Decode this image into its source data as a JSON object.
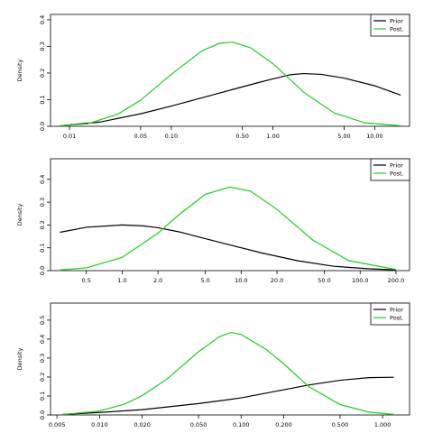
{
  "chart_data": [
    {
      "type": "line",
      "xscale": "log",
      "ylabel": "Density",
      "xlim": [
        0.0065,
        22
      ],
      "ylim": [
        0,
        0.42
      ],
      "xticks": [
        {
          "value": 0.01,
          "label": "0.01"
        },
        {
          "value": 0.05,
          "label": "0.05"
        },
        {
          "value": 0.1,
          "label": "0.10"
        },
        {
          "value": 0.5,
          "label": "0.50"
        },
        {
          "value": 1.0,
          "label": "1.00"
        },
        {
          "value": 5.0,
          "label": "5.00"
        },
        {
          "value": 10.0,
          "label": "10.00"
        }
      ],
      "yticks": [
        {
          "value": 0.0,
          "label": "0.0"
        },
        {
          "value": 0.1,
          "label": "0.1"
        },
        {
          "value": 0.2,
          "label": "0.2"
        },
        {
          "value": 0.3,
          "label": "0.3"
        },
        {
          "value": 0.4,
          "label": "0.4"
        }
      ],
      "legend_position": "top-right",
      "series": [
        {
          "name": "Prior",
          "color": "#000000",
          "x": [
            0.008,
            0.02,
            0.05,
            0.1,
            0.2,
            0.4,
            0.7,
            1.0,
            1.5,
            2.0,
            3.0,
            5.0,
            10.0,
            18.0
          ],
          "y": [
            0.002,
            0.016,
            0.047,
            0.076,
            0.107,
            0.138,
            0.163,
            0.178,
            0.194,
            0.198,
            0.195,
            0.181,
            0.152,
            0.117
          ]
        },
        {
          "name": "Post.",
          "color": "#22cc22",
          "x": [
            0.008,
            0.015,
            0.03,
            0.05,
            0.1,
            0.2,
            0.3,
            0.4,
            0.6,
            1.0,
            2.0,
            4.0,
            8.0,
            18.0
          ],
          "y": [
            0.002,
            0.009,
            0.046,
            0.098,
            0.195,
            0.283,
            0.312,
            0.316,
            0.295,
            0.235,
            0.128,
            0.05,
            0.013,
            0.002
          ]
        }
      ]
    },
    {
      "type": "line",
      "xscale": "log",
      "ylabel": "Density",
      "xlim": [
        0.25,
        260
      ],
      "ylim": [
        0,
        0.49
      ],
      "xticks": [
        {
          "value": 0.5,
          "label": "0.5"
        },
        {
          "value": 1.0,
          "label": "1.0"
        },
        {
          "value": 2.0,
          "label": "2.0"
        },
        {
          "value": 5.0,
          "label": "5.0"
        },
        {
          "value": 10.0,
          "label": "10.0"
        },
        {
          "value": 20.0,
          "label": "20.0"
        },
        {
          "value": 50.0,
          "label": "50.0"
        },
        {
          "value": 100.0,
          "label": "100.0"
        },
        {
          "value": 200.0,
          "label": "200.0"
        }
      ],
      "yticks": [
        {
          "value": 0.0,
          "label": "0.0"
        },
        {
          "value": 0.1,
          "label": "0.1"
        },
        {
          "value": 0.2,
          "label": "0.2"
        },
        {
          "value": 0.3,
          "label": "0.3"
        },
        {
          "value": 0.4,
          "label": "0.4"
        }
      ],
      "legend_position": "top-right",
      "series": [
        {
          "name": "Prior",
          "color": "#000000",
          "x": [
            0.3,
            0.5,
            1.0,
            1.5,
            2.0,
            3.0,
            5.0,
            8.0,
            15.0,
            30.0,
            60.0,
            120.0,
            200.0
          ],
          "y": [
            0.168,
            0.19,
            0.2,
            0.196,
            0.188,
            0.17,
            0.14,
            0.113,
            0.077,
            0.043,
            0.019,
            0.008,
            0.003
          ]
        },
        {
          "name": "Post.",
          "color": "#22cc22",
          "x": [
            0.3,
            0.5,
            1.0,
            2.0,
            3.0,
            5.0,
            8.0,
            12.0,
            20.0,
            40.0,
            80.0,
            200.0
          ],
          "y": [
            0.003,
            0.012,
            0.058,
            0.164,
            0.245,
            0.334,
            0.366,
            0.348,
            0.268,
            0.134,
            0.044,
            0.005
          ]
        }
      ]
    },
    {
      "type": "line",
      "xscale": "log",
      "ylabel": "Density",
      "xlim": [
        0.0045,
        1.55
      ],
      "ylim": [
        0,
        0.59
      ],
      "xticks": [
        {
          "value": 0.005,
          "label": "0.005"
        },
        {
          "value": 0.01,
          "label": "0.010"
        },
        {
          "value": 0.02,
          "label": "0.020"
        },
        {
          "value": 0.05,
          "label": "0.050"
        },
        {
          "value": 0.1,
          "label": "0.100"
        },
        {
          "value": 0.2,
          "label": "0.200"
        },
        {
          "value": 0.5,
          "label": "0.500"
        },
        {
          "value": 1.0,
          "label": "1.000"
        }
      ],
      "yticks": [
        {
          "value": 0.0,
          "label": "0.0"
        },
        {
          "value": 0.1,
          "label": "0.1"
        },
        {
          "value": 0.2,
          "label": "0.2"
        },
        {
          "value": 0.3,
          "label": "0.3"
        },
        {
          "value": 0.4,
          "label": "0.4"
        },
        {
          "value": 0.5,
          "label": "0.5"
        }
      ],
      "legend_position": "top-right",
      "series": [
        {
          "name": "Prior",
          "color": "#000000",
          "x": [
            0.0055,
            0.01,
            0.02,
            0.05,
            0.1,
            0.2,
            0.3,
            0.5,
            0.8,
            1.2
          ],
          "y": [
            0.003,
            0.013,
            0.028,
            0.06,
            0.09,
            0.133,
            0.158,
            0.183,
            0.197,
            0.199
          ]
        },
        {
          "name": "Post.",
          "color": "#22cc22",
          "x": [
            0.0055,
            0.01,
            0.015,
            0.02,
            0.03,
            0.05,
            0.07,
            0.085,
            0.1,
            0.15,
            0.2,
            0.3,
            0.5,
            0.8,
            1.2
          ],
          "y": [
            0.002,
            0.021,
            0.057,
            0.102,
            0.19,
            0.333,
            0.412,
            0.435,
            0.425,
            0.346,
            0.27,
            0.15,
            0.055,
            0.015,
            0.003
          ]
        }
      ]
    }
  ]
}
